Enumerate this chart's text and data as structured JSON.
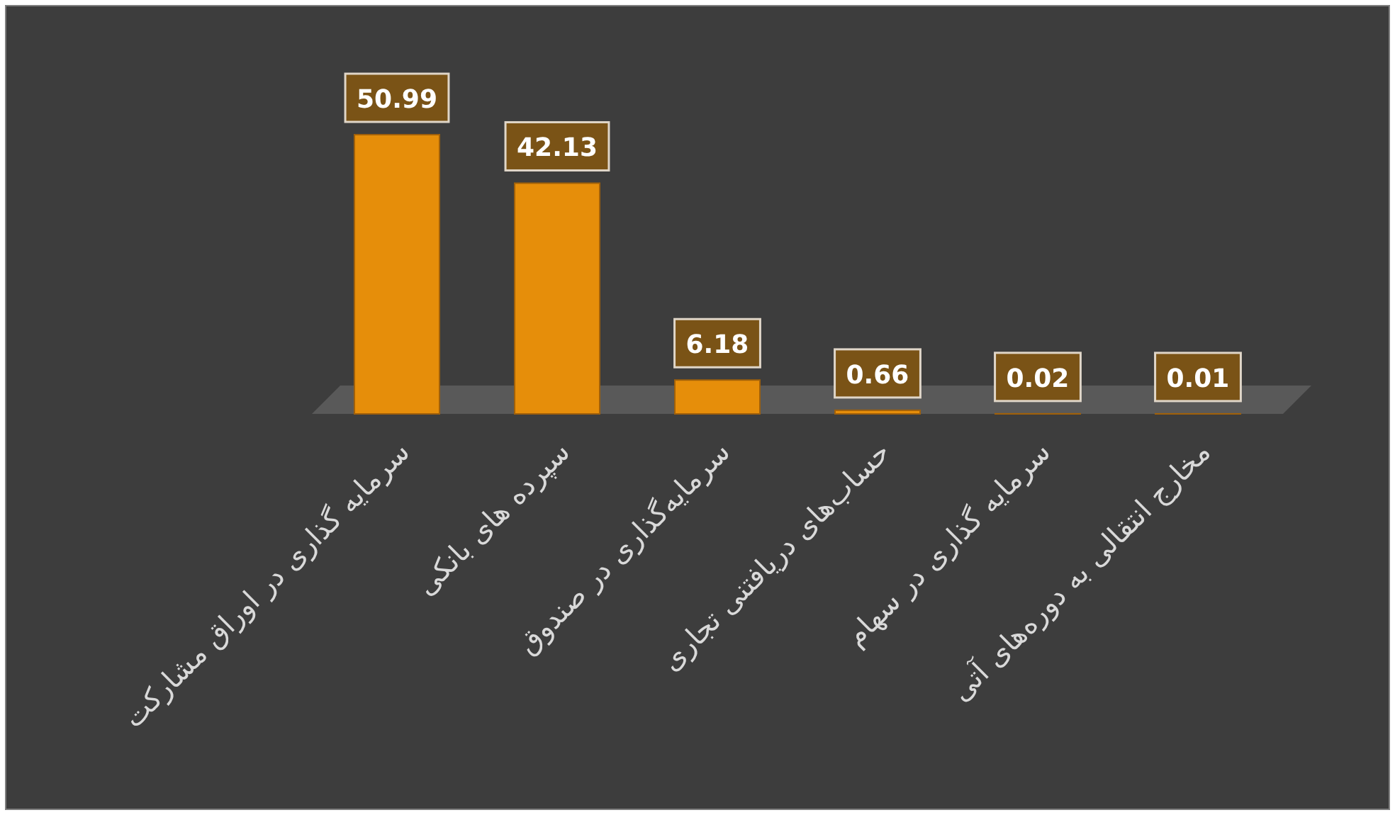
{
  "chart_data": {
    "type": "bar",
    "categories": [
      "سرمایه گذاری در اوراق مشارکت",
      "سپرده های بانکی",
      "سرمایه‌گذاری در صندوق",
      "حساب‌های دریافتنی تجاری",
      "سرمایه گذاری در سهام",
      "مخارج انتقالی به دوره‌های آتی"
    ],
    "values": [
      50.99,
      42.13,
      6.18,
      0.66,
      0.02,
      0.01
    ],
    "color": "#e68e0a",
    "data_labels": true
  }
}
